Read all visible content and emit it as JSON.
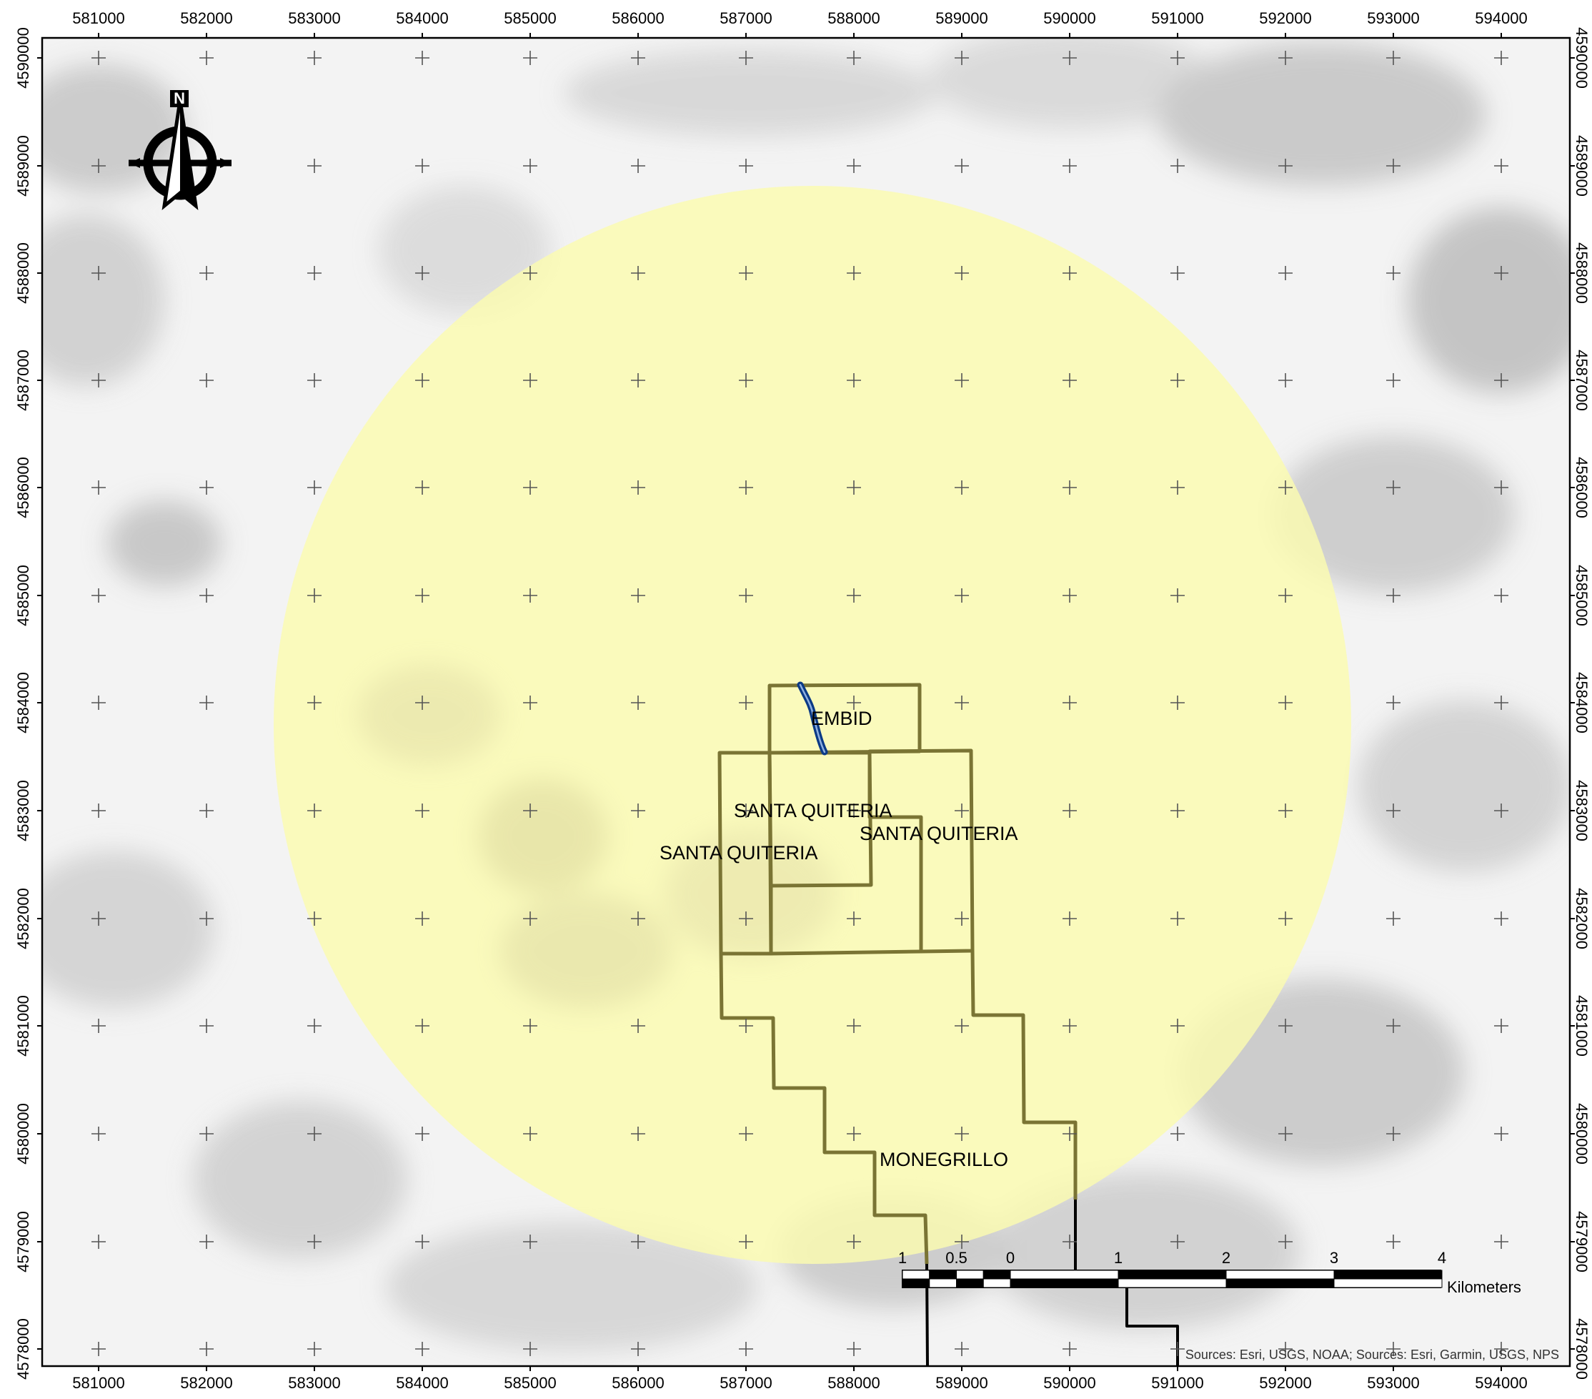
{
  "map": {
    "grid": {
      "eastings": [
        "581000",
        "582000",
        "583000",
        "584000",
        "585000",
        "586000",
        "587000",
        "588000",
        "589000",
        "590000",
        "591000",
        "592000",
        "593000",
        "594000"
      ],
      "northings": [
        "4590000",
        "4589000",
        "4588000",
        "4587000",
        "4586000",
        "4585000",
        "4584000",
        "4583000",
        "4582000",
        "4581000",
        "4580000",
        "4579000",
        "4578000"
      ]
    },
    "north_arrow": {
      "letter": "N"
    },
    "municipalities": [
      {
        "name": "EMBID"
      },
      {
        "name": "SANTA QUITERIA"
      },
      {
        "name": "SANTA QUITERIA"
      },
      {
        "name": "SANTA QUITERIA"
      },
      {
        "name": "MONEGRILLO"
      }
    ],
    "scale_bar": {
      "labels": [
        "1",
        "0.5",
        "0",
        "1",
        "2",
        "3",
        "4"
      ],
      "unit": "Kilometers"
    },
    "sources": "Sources: Esri, USGS, NOAA; Sources: Esri, Garmin, USGS, NPS",
    "colors": {
      "buffer_fill": "#fbfbb0",
      "boundary_stroke": "#7a7434",
      "river": "#0b3a86",
      "outside_boundary": "#000000",
      "grid_cross": "#555555"
    }
  }
}
